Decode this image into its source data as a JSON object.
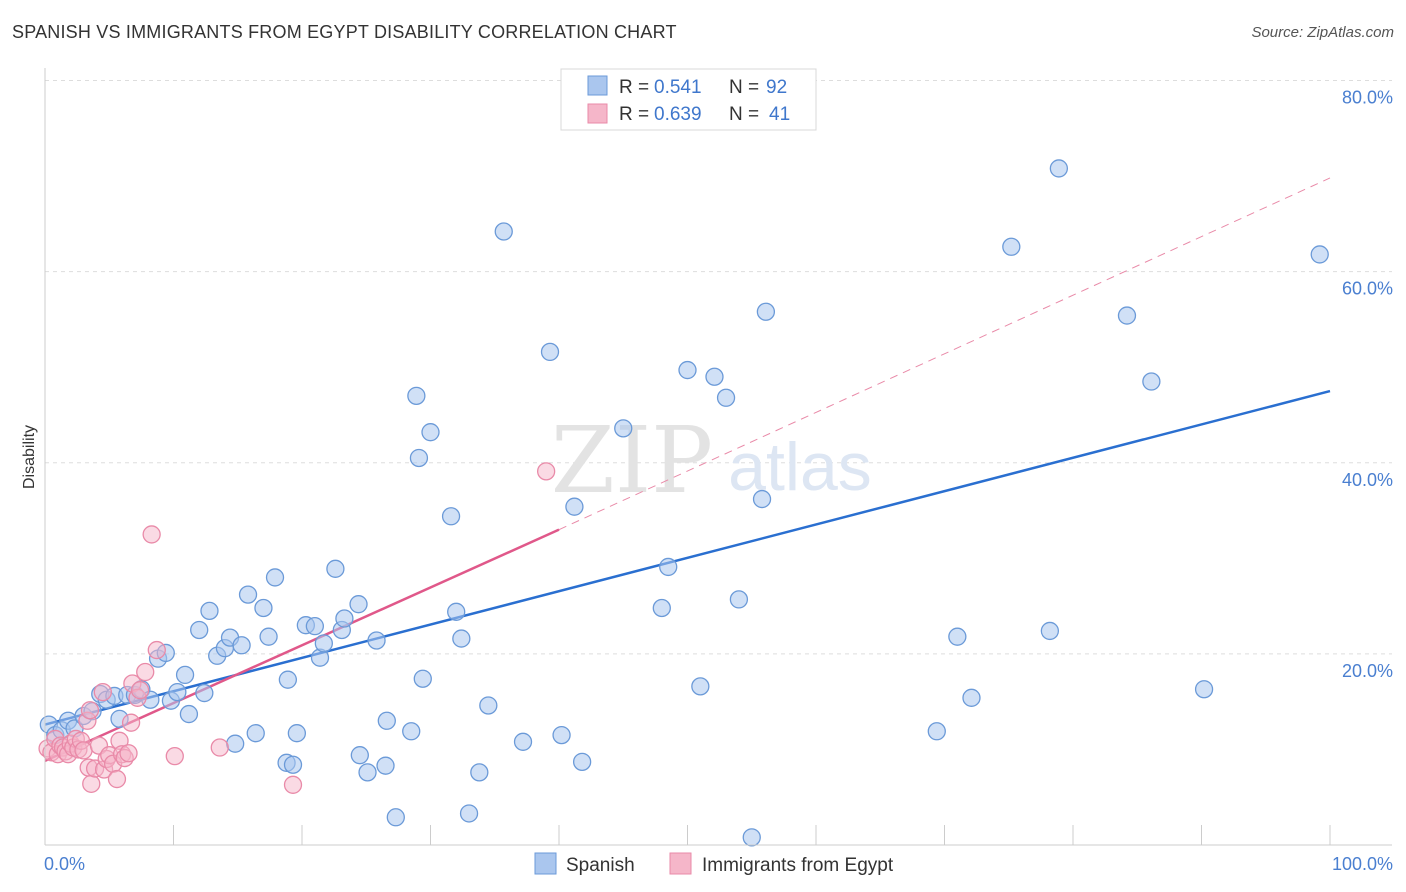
{
  "title": "SPANISH VS IMMIGRANTS FROM EGYPT DISABILITY CORRELATION CHART",
  "source": "Source: ZipAtlas.com",
  "colors": {
    "blue_fill": "#aac6ee",
    "blue_stroke": "#6b9ad8",
    "blue_line": "#2a6fd0",
    "pink_fill": "#f5b6c9",
    "pink_stroke": "#e98aa8",
    "pink_line": "#e0588a",
    "grid": "#dddddd",
    "tick_text": "#4a7fd0"
  },
  "legend": {
    "rows": [
      {
        "r_label": "R =",
        "r_value": "0.541",
        "n_label": "N =",
        "n_value": "92"
      },
      {
        "r_label": "R =",
        "r_value": "0.639",
        "n_label": "N =",
        "n_value": "41"
      }
    ]
  },
  "watermark": {
    "zip": "ZIP",
    "atlas": "atlas"
  },
  "chart_data": {
    "type": "scatter",
    "title": "SPANISH VS IMMIGRANTS FROM EGYPT DISABILITY CORRELATION CHART",
    "xlabel": "",
    "ylabel": "Disability",
    "xlim": [
      0,
      100
    ],
    "ylim": [
      0,
      80
    ],
    "x_tick_labels": [
      "0.0%",
      "100.0%"
    ],
    "y_ticks": [
      20,
      40,
      60,
      80
    ],
    "y_tick_labels": [
      "20.0%",
      "40.0%",
      "60.0%",
      "80.0%"
    ],
    "grid": true,
    "legend_position": "bottom",
    "series": [
      {
        "name": "Spanish",
        "R": 0.541,
        "N": 92,
        "trend": {
          "x": [
            0,
            100
          ],
          "y": [
            12.6,
            47.5
          ]
        },
        "points": [
          {
            "x": 0.3,
            "y": 12.6
          },
          {
            "x": 0.8,
            "y": 11.5
          },
          {
            "x": 1.3,
            "y": 12.0
          },
          {
            "x": 1.8,
            "y": 13.0
          },
          {
            "x": 2.3,
            "y": 12.2
          },
          {
            "x": 3.0,
            "y": 13.5
          },
          {
            "x": 3.7,
            "y": 14.0
          },
          {
            "x": 4.3,
            "y": 15.8
          },
          {
            "x": 4.8,
            "y": 15.2
          },
          {
            "x": 5.4,
            "y": 15.6
          },
          {
            "x": 5.8,
            "y": 13.2
          },
          {
            "x": 6.4,
            "y": 15.7
          },
          {
            "x": 7.0,
            "y": 15.7
          },
          {
            "x": 7.5,
            "y": 16.3
          },
          {
            "x": 8.2,
            "y": 15.2
          },
          {
            "x": 8.8,
            "y": 19.5
          },
          {
            "x": 9.4,
            "y": 20.1
          },
          {
            "x": 9.8,
            "y": 15.1
          },
          {
            "x": 10.3,
            "y": 16.0
          },
          {
            "x": 10.9,
            "y": 17.8
          },
          {
            "x": 11.2,
            "y": 13.7
          },
          {
            "x": 12.0,
            "y": 22.5
          },
          {
            "x": 12.4,
            "y": 15.9
          },
          {
            "x": 12.8,
            "y": 24.5
          },
          {
            "x": 13.4,
            "y": 19.8
          },
          {
            "x": 14.0,
            "y": 20.6
          },
          {
            "x": 14.4,
            "y": 21.7
          },
          {
            "x": 14.8,
            "y": 10.6
          },
          {
            "x": 15.3,
            "y": 20.9
          },
          {
            "x": 15.8,
            "y": 26.2
          },
          {
            "x": 16.4,
            "y": 11.7
          },
          {
            "x": 17.0,
            "y": 24.8
          },
          {
            "x": 17.4,
            "y": 21.8
          },
          {
            "x": 17.9,
            "y": 28.0
          },
          {
            "x": 18.8,
            "y": 8.6
          },
          {
            "x": 18.9,
            "y": 17.3
          },
          {
            "x": 19.3,
            "y": 8.4
          },
          {
            "x": 19.6,
            "y": 11.7
          },
          {
            "x": 20.3,
            "y": 23.0
          },
          {
            "x": 21.0,
            "y": 22.9
          },
          {
            "x": 21.4,
            "y": 19.6
          },
          {
            "x": 21.7,
            "y": 21.1
          },
          {
            "x": 22.6,
            "y": 28.9
          },
          {
            "x": 23.1,
            "y": 22.5
          },
          {
            "x": 23.3,
            "y": 23.7
          },
          {
            "x": 24.4,
            "y": 25.2
          },
          {
            "x": 24.5,
            "y": 9.4
          },
          {
            "x": 25.1,
            "y": 7.6
          },
          {
            "x": 25.8,
            "y": 21.4
          },
          {
            "x": 26.5,
            "y": 8.3
          },
          {
            "x": 26.6,
            "y": 13.0
          },
          {
            "x": 27.3,
            "y": 2.9
          },
          {
            "x": 28.5,
            "y": 11.9
          },
          {
            "x": 29.1,
            "y": 40.5
          },
          {
            "x": 28.9,
            "y": 47.0
          },
          {
            "x": 30.0,
            "y": 43.2
          },
          {
            "x": 29.4,
            "y": 17.4
          },
          {
            "x": 31.6,
            "y": 34.4
          },
          {
            "x": 32.0,
            "y": 24.4
          },
          {
            "x": 32.4,
            "y": 21.6
          },
          {
            "x": 33.0,
            "y": 3.3
          },
          {
            "x": 33.8,
            "y": 7.6
          },
          {
            "x": 34.5,
            "y": 14.6
          },
          {
            "x": 35.7,
            "y": 64.2
          },
          {
            "x": 37.2,
            "y": 10.8
          },
          {
            "x": 39.3,
            "y": 51.6
          },
          {
            "x": 40.2,
            "y": 11.5
          },
          {
            "x": 41.2,
            "y": 35.4
          },
          {
            "x": 41.8,
            "y": 8.7
          },
          {
            "x": 45.0,
            "y": 43.6
          },
          {
            "x": 48.0,
            "y": 24.8
          },
          {
            "x": 48.5,
            "y": 29.1
          },
          {
            "x": 50.0,
            "y": 49.7
          },
          {
            "x": 51.0,
            "y": 16.6
          },
          {
            "x": 52.1,
            "y": 49.0
          },
          {
            "x": 53.0,
            "y": 46.8
          },
          {
            "x": 54.0,
            "y": 25.7
          },
          {
            "x": 55.0,
            "y": 0.8
          },
          {
            "x": 55.8,
            "y": 36.2
          },
          {
            "x": 56.1,
            "y": 55.8
          },
          {
            "x": 69.4,
            "y": 11.9
          },
          {
            "x": 71.0,
            "y": 21.8
          },
          {
            "x": 72.1,
            "y": 15.4
          },
          {
            "x": 75.2,
            "y": 62.6
          },
          {
            "x": 78.2,
            "y": 22.4
          },
          {
            "x": 78.9,
            "y": 70.8
          },
          {
            "x": 84.2,
            "y": 55.4
          },
          {
            "x": 86.1,
            "y": 48.5
          },
          {
            "x": 90.2,
            "y": 16.3
          },
          {
            "x": 99.2,
            "y": 61.8
          }
        ]
      },
      {
        "name": "Immigrants from Egypt",
        "R": 0.639,
        "N": 41,
        "trend": {
          "x": [
            0,
            40
          ],
          "y": [
            8.8,
            33.0
          ]
        },
        "trend_dashed": {
          "x": [
            40,
            100
          ],
          "y": [
            33.0,
            69.8
          ]
        },
        "points": [
          {
            "x": 0.2,
            "y": 10.1
          },
          {
            "x": 0.5,
            "y": 9.7
          },
          {
            "x": 0.8,
            "y": 11.1
          },
          {
            "x": 1.0,
            "y": 9.5
          },
          {
            "x": 1.2,
            "y": 10.4
          },
          {
            "x": 1.4,
            "y": 10.2
          },
          {
            "x": 1.6,
            "y": 9.8
          },
          {
            "x": 1.8,
            "y": 9.5
          },
          {
            "x": 2.0,
            "y": 10.6
          },
          {
            "x": 2.2,
            "y": 10.2
          },
          {
            "x": 2.4,
            "y": 11.1
          },
          {
            "x": 2.6,
            "y": 10.0
          },
          {
            "x": 2.8,
            "y": 10.9
          },
          {
            "x": 3.0,
            "y": 9.9
          },
          {
            "x": 3.3,
            "y": 13.0
          },
          {
            "x": 3.5,
            "y": 14.1
          },
          {
            "x": 3.4,
            "y": 8.1
          },
          {
            "x": 3.6,
            "y": 6.4
          },
          {
            "x": 3.9,
            "y": 8.0
          },
          {
            "x": 4.2,
            "y": 10.4
          },
          {
            "x": 4.5,
            "y": 16.0
          },
          {
            "x": 4.6,
            "y": 7.9
          },
          {
            "x": 4.8,
            "y": 9.0
          },
          {
            "x": 5.0,
            "y": 9.4
          },
          {
            "x": 5.3,
            "y": 8.5
          },
          {
            "x": 5.6,
            "y": 6.9
          },
          {
            "x": 5.8,
            "y": 10.9
          },
          {
            "x": 6.0,
            "y": 9.5
          },
          {
            "x": 6.2,
            "y": 9.1
          },
          {
            "x": 6.5,
            "y": 9.6
          },
          {
            "x": 6.7,
            "y": 12.8
          },
          {
            "x": 6.8,
            "y": 16.9
          },
          {
            "x": 7.2,
            "y": 15.4
          },
          {
            "x": 7.4,
            "y": 16.2
          },
          {
            "x": 7.8,
            "y": 18.1
          },
          {
            "x": 8.3,
            "y": 32.5
          },
          {
            "x": 8.7,
            "y": 20.4
          },
          {
            "x": 10.1,
            "y": 9.3
          },
          {
            "x": 13.6,
            "y": 10.2
          },
          {
            "x": 19.3,
            "y": 6.3
          },
          {
            "x": 39.0,
            "y": 39.1
          }
        ]
      }
    ]
  }
}
